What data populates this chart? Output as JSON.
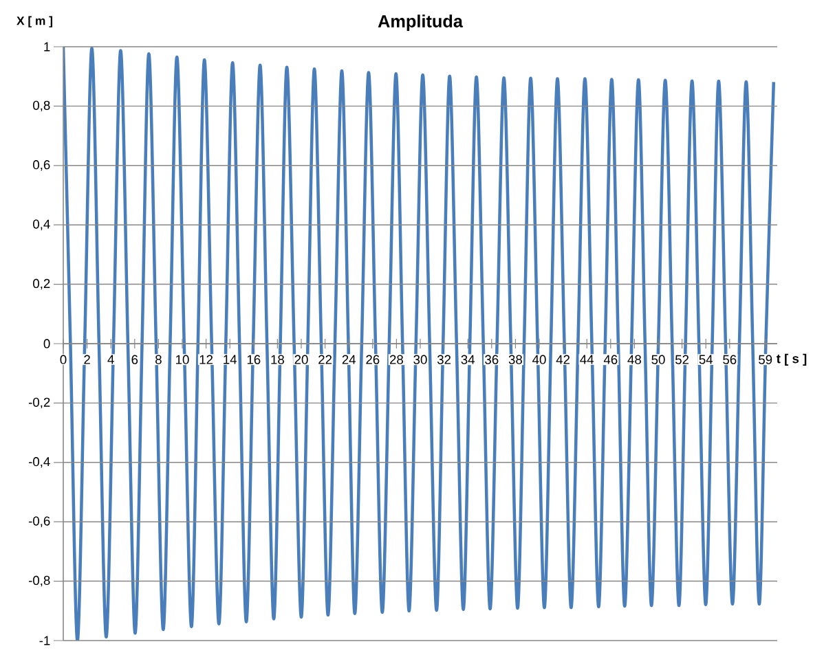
{
  "chart_data": {
    "type": "line",
    "title": "Amplituda",
    "xlabel": "t [ s ]",
    "ylabel": "X [ m ]",
    "x": [
      0,
      0.6,
      1.19,
      1.8,
      2.4,
      3.0,
      3.61,
      4.22,
      4.82,
      5.43,
      6.04,
      6.62,
      7.19,
      7.8,
      8.4,
      8.98,
      9.55,
      10.16,
      10.77,
      11.32,
      11.86,
      12.47,
      13.08,
      13.66,
      14.23,
      14.81,
      15.38,
      15.96,
      16.54,
      17.12,
      17.69,
      18.24,
      18.79,
      19.4,
      20.0,
      20.55,
      21.1,
      21.68,
      22.25,
      22.83,
      23.41,
      23.96,
      24.5,
      25.08,
      25.66,
      26.24,
      26.81,
      27.39,
      27.96,
      28.51,
      29.06,
      29.64,
      30.21,
      30.79,
      31.37,
      31.92,
      32.47,
      33.05,
      33.62,
      34.17,
      34.72,
      35.3,
      35.87,
      36.45,
      37.03,
      37.61,
      38.18,
      38.73,
      39.28,
      39.86,
      40.43,
      40.98,
      41.53,
      42.11,
      42.68,
      43.26,
      43.84,
      44.42,
      44.99,
      45.54,
      46.09,
      46.64,
      47.18,
      47.76,
      48.34,
      48.89,
      49.43,
      50.01,
      50.59,
      51.17,
      51.74,
      52.29,
      52.84,
      53.42,
      53.99,
      54.54,
      55.08,
      55.66,
      56.24,
      56.82,
      57.39,
      57.94,
      58.49,
      59.04,
      59.7
    ],
    "series": [
      {
        "color": "#4a7ebb",
        "values": [
          1.0,
          0,
          -1.0,
          0,
          0.995,
          0,
          -0.988,
          0,
          0.987,
          0,
          -0.975,
          0,
          0.976,
          0,
          -0.963,
          0,
          0.965,
          0,
          -0.953,
          0,
          0.956,
          0,
          -0.944,
          0,
          0.946,
          0,
          -0.937,
          0,
          0.938,
          0,
          -0.927,
          0,
          0.931,
          0,
          -0.921,
          0,
          0.925,
          0,
          -0.914,
          0,
          0.919,
          0,
          -0.909,
          0,
          0.913,
          0,
          -0.905,
          0,
          0.909,
          0,
          -0.9,
          0,
          0.905,
          0,
          -0.898,
          0,
          0.901,
          0,
          -0.895,
          0,
          0.898,
          0,
          -0.893,
          0,
          0.895,
          0,
          -0.891,
          0,
          0.894,
          0,
          -0.889,
          0,
          0.892,
          0,
          -0.889,
          0,
          0.892,
          0,
          -0.886,
          0,
          0.89,
          0,
          -0.884,
          0,
          0.889,
          0,
          -0.882,
          0,
          0.887,
          0,
          -0.882,
          0,
          0.885,
          0,
          -0.879,
          0,
          0.884,
          0,
          -0.877,
          0,
          0.882,
          0,
          -0.877,
          0,
          0.881
        ]
      }
    ],
    "xlim": [
      0,
      60
    ],
    "ylim": [
      -1,
      1
    ],
    "xticks": [
      0,
      2,
      4,
      6,
      8,
      10,
      12,
      14,
      16,
      18,
      20,
      22,
      24,
      26,
      28,
      30,
      32,
      34,
      36,
      38,
      40,
      42,
      44,
      46,
      48,
      50,
      52,
      54,
      56,
      59
    ],
    "yticks": [
      -1,
      {
        "value": -0.8,
        "label": "-0,8"
      },
      {
        "value": -0.6,
        "label": "-0,6"
      },
      {
        "value": -0.4,
        "label": "-0,4"
      },
      {
        "value": -0.2,
        "label": "-0,2"
      },
      0,
      {
        "value": 0.2,
        "label": "0,2"
      },
      {
        "value": 0.4,
        "label": "0,4"
      },
      {
        "value": 0.6,
        "label": "0,6"
      },
      {
        "value": 0.8,
        "label": "0,8"
      },
      1
    ],
    "grid": "y"
  }
}
